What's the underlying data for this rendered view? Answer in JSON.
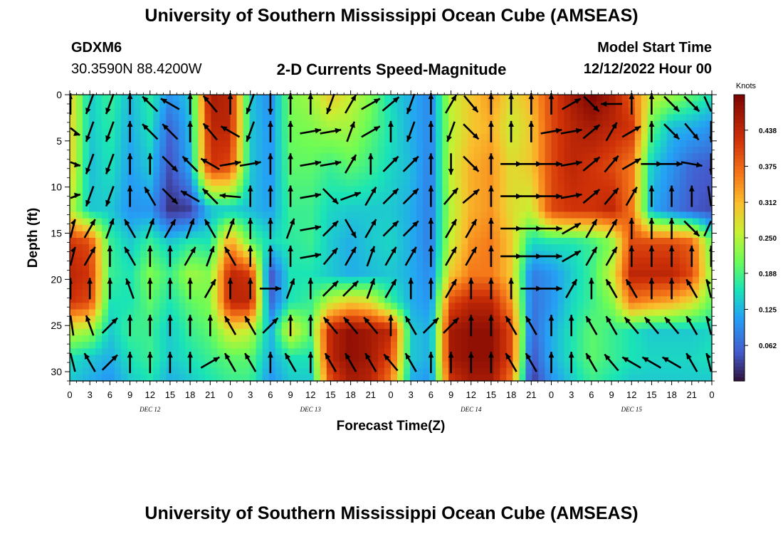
{
  "header": {
    "title": "University of Southern Mississippi Ocean Cube (AMSEAS)",
    "station_id": "GDXM6",
    "location": "30.3590N  88.4200W",
    "product": "2-D Currents Speed-Magnitude",
    "model_start_label": "Model Start Time",
    "model_start_value": "12/12/2022 Hour 00"
  },
  "footer": {
    "title": "University of Southern Mississippi Ocean Cube (AMSEAS)"
  },
  "chart_data": {
    "type": "heatmap",
    "title": "2-D Currents Speed-Magnitude",
    "xlabel": "Forecast Time(Z)",
    "ylabel": "Depth (ft)",
    "x_tick_labels": [
      "0",
      "3",
      "6",
      "9",
      "12",
      "15",
      "18",
      "21",
      "0",
      "3",
      "6",
      "9",
      "12",
      "15",
      "18",
      "21",
      "0",
      "3",
      "6",
      "9",
      "12",
      "15",
      "18",
      "21",
      "0",
      "3",
      "6",
      "9",
      "12",
      "15",
      "18",
      "21",
      "0"
    ],
    "day_labels": [
      "DEC 12",
      "DEC 13",
      "DEC 14",
      "DEC 15"
    ],
    "ylim": [
      0,
      31
    ],
    "y_ticks": [
      0,
      5,
      10,
      15,
      20,
      25,
      30
    ],
    "y_tick_labels": [
      "0",
      "5",
      "10",
      "15",
      "20",
      "25",
      "30"
    ],
    "colorbar": {
      "title": "Knots",
      "range": [
        0,
        0.5
      ],
      "ticks": [
        "0.438",
        "0.375",
        "0.312",
        "0.250",
        "0.188",
        "0.125",
        "0.062"
      ],
      "tick_values": [
        0.438,
        0.375,
        0.312,
        0.25,
        0.188,
        0.125,
        0.062
      ]
    },
    "depths_ft": [
      0,
      3.5,
      7.75,
      12.5,
      16,
      19.5,
      22.5,
      25.5,
      28.5,
      31
    ],
    "time_steps_hours": [
      0,
      3,
      6,
      9,
      12,
      15,
      18,
      21,
      24,
      27,
      30,
      33,
      36,
      39,
      42,
      45,
      48,
      51,
      54,
      57,
      60,
      63,
      66,
      69,
      72,
      75,
      78,
      81,
      84,
      87,
      90,
      93,
      96
    ],
    "speed_knots": [
      [
        0.3,
        0.14,
        0.18,
        0.13,
        0.17,
        0.1,
        0.14,
        0.46,
        0.44,
        0.14,
        0.09,
        0.22,
        0.24,
        0.3,
        0.26,
        0.22,
        0.15,
        0.12,
        0.09,
        0.26,
        0.3,
        0.34,
        0.28,
        0.32,
        0.4,
        0.46,
        0.5,
        0.46,
        0.38,
        0.26,
        0.24,
        0.2,
        0.16
      ],
      [
        0.3,
        0.14,
        0.17,
        0.12,
        0.16,
        0.06,
        0.13,
        0.44,
        0.44,
        0.14,
        0.1,
        0.21,
        0.22,
        0.24,
        0.24,
        0.2,
        0.16,
        0.12,
        0.09,
        0.25,
        0.3,
        0.32,
        0.26,
        0.3,
        0.4,
        0.44,
        0.46,
        0.44,
        0.42,
        0.2,
        0.13,
        0.12,
        0.1
      ],
      [
        0.3,
        0.13,
        0.16,
        0.11,
        0.14,
        0.04,
        0.12,
        0.42,
        0.4,
        0.14,
        0.1,
        0.2,
        0.2,
        0.18,
        0.2,
        0.18,
        0.15,
        0.13,
        0.08,
        0.26,
        0.32,
        0.34,
        0.28,
        0.3,
        0.4,
        0.44,
        0.42,
        0.4,
        0.36,
        0.14,
        0.1,
        0.06,
        0.05
      ],
      [
        0.26,
        0.14,
        0.14,
        0.1,
        0.1,
        0.02,
        0.03,
        0.13,
        0.14,
        0.13,
        0.11,
        0.18,
        0.18,
        0.15,
        0.14,
        0.14,
        0.14,
        0.12,
        0.08,
        0.25,
        0.32,
        0.34,
        0.28,
        0.26,
        0.4,
        0.42,
        0.42,
        0.44,
        0.36,
        0.12,
        0.08,
        0.05,
        0.04
      ],
      [
        0.42,
        0.4,
        0.18,
        0.14,
        0.18,
        0.14,
        0.17,
        0.16,
        0.34,
        0.2,
        0.15,
        0.17,
        0.18,
        0.14,
        0.12,
        0.14,
        0.15,
        0.12,
        0.08,
        0.26,
        0.34,
        0.36,
        0.3,
        0.15,
        0.16,
        0.16,
        0.18,
        0.22,
        0.4,
        0.4,
        0.4,
        0.38,
        0.2
      ],
      [
        0.44,
        0.42,
        0.18,
        0.16,
        0.22,
        0.18,
        0.24,
        0.22,
        0.44,
        0.42,
        0.04,
        0.16,
        0.16,
        0.14,
        0.12,
        0.13,
        0.14,
        0.12,
        0.09,
        0.3,
        0.36,
        0.36,
        0.3,
        0.08,
        0.1,
        0.14,
        0.18,
        0.26,
        0.44,
        0.44,
        0.44,
        0.4,
        0.22
      ],
      [
        0.42,
        0.4,
        0.16,
        0.16,
        0.2,
        0.16,
        0.2,
        0.22,
        0.44,
        0.44,
        0.06,
        0.16,
        0.18,
        0.26,
        0.3,
        0.28,
        0.18,
        0.12,
        0.1,
        0.4,
        0.44,
        0.44,
        0.34,
        0.07,
        0.1,
        0.15,
        0.18,
        0.22,
        0.36,
        0.34,
        0.32,
        0.28,
        0.2
      ],
      [
        0.26,
        0.24,
        0.14,
        0.18,
        0.18,
        0.14,
        0.18,
        0.2,
        0.28,
        0.26,
        0.12,
        0.28,
        0.2,
        0.44,
        0.48,
        0.46,
        0.44,
        0.14,
        0.12,
        0.46,
        0.48,
        0.48,
        0.4,
        0.06,
        0.12,
        0.16,
        0.2,
        0.18,
        0.16,
        0.14,
        0.14,
        0.14,
        0.15
      ],
      [
        0.16,
        0.14,
        0.12,
        0.16,
        0.18,
        0.14,
        0.16,
        0.18,
        0.2,
        0.2,
        0.12,
        0.16,
        0.16,
        0.44,
        0.48,
        0.46,
        0.4,
        0.14,
        0.12,
        0.46,
        0.48,
        0.48,
        0.4,
        0.04,
        0.12,
        0.16,
        0.2,
        0.18,
        0.16,
        0.15,
        0.15,
        0.15,
        0.16
      ],
      [
        0.14,
        0.12,
        0.1,
        0.14,
        0.16,
        0.12,
        0.14,
        0.16,
        0.18,
        0.18,
        0.1,
        0.14,
        0.14,
        0.4,
        0.46,
        0.44,
        0.36,
        0.12,
        0.1,
        0.42,
        0.46,
        0.46,
        0.36,
        0.02,
        0.1,
        0.14,
        0.18,
        0.16,
        0.14,
        0.14,
        0.14,
        0.14,
        0.14
      ]
    ],
    "arrow_depths_ft": [
      1,
      4,
      7.5,
      11,
      14.5,
      17.5,
      21,
      25,
      29
    ],
    "arrow_directions_deg": [
      [
        0,
        200,
        200,
        0,
        315,
        300,
        0,
        320,
        0,
        200,
        180,
        0,
        0,
        200,
        30,
        60,
        50,
        200,
        0,
        30,
        140,
        0,
        0,
        0,
        0,
        60,
        135,
        270,
        0,
        0,
        135,
        135,
        135
      ],
      [
        110,
        200,
        200,
        0,
        315,
        315,
        0,
        320,
        300,
        200,
        0,
        0,
        80,
        80,
        20,
        60,
        0,
        200,
        0,
        200,
        135,
        0,
        0,
        0,
        80,
        80,
        50,
        30,
        60,
        0,
        135,
        140,
        180
      ],
      [
        100,
        200,
        200,
        0,
        0,
        135,
        315,
        300,
        80,
        80,
        0,
        0,
        80,
        80,
        30,
        0,
        45,
        45,
        0,
        180,
        135,
        0,
        90,
        90,
        90,
        80,
        50,
        40,
        60,
        90,
        90,
        100,
        180
      ],
      [
        80,
        200,
        200,
        0,
        330,
        135,
        300,
        315,
        275,
        0,
        0,
        0,
        80,
        135,
        70,
        30,
        45,
        45,
        0,
        40,
        50,
        0,
        90,
        90,
        90,
        80,
        50,
        40,
        30,
        0,
        0,
        0,
        160
      ],
      [
        30,
        30,
        20,
        330,
        20,
        30,
        20,
        330,
        20,
        0,
        0,
        20,
        80,
        45,
        150,
        30,
        45,
        45,
        0,
        30,
        30,
        0,
        90,
        90,
        90,
        60,
        30,
        30,
        0,
        0,
        0,
        135,
        45
      ],
      [
        30,
        30,
        0,
        330,
        0,
        0,
        30,
        20,
        330,
        0,
        0,
        0,
        80,
        40,
        30,
        20,
        30,
        30,
        0,
        30,
        30,
        0,
        90,
        90,
        90,
        60,
        30,
        30,
        0,
        0,
        0,
        0,
        0
      ],
      [
        0,
        0,
        0,
        340,
        0,
        0,
        0,
        30,
        0,
        0,
        90,
        20,
        0,
        45,
        45,
        20,
        30,
        0,
        0,
        30,
        0,
        0,
        0,
        90,
        90,
        30,
        0,
        330,
        330,
        0,
        0,
        330,
        330
      ],
      [
        340,
        340,
        45,
        0,
        0,
        0,
        0,
        0,
        330,
        330,
        45,
        0,
        0,
        320,
        320,
        320,
        0,
        330,
        45,
        45,
        0,
        0,
        330,
        330,
        0,
        0,
        330,
        330,
        320,
        320,
        320,
        330,
        330
      ],
      [
        330,
        330,
        45,
        0,
        0,
        0,
        0,
        60,
        330,
        330,
        0,
        330,
        0,
        330,
        330,
        330,
        320,
        330,
        0,
        0,
        0,
        0,
        330,
        330,
        0,
        0,
        330,
        320,
        300,
        300,
        300,
        330,
        330
      ]
    ]
  }
}
